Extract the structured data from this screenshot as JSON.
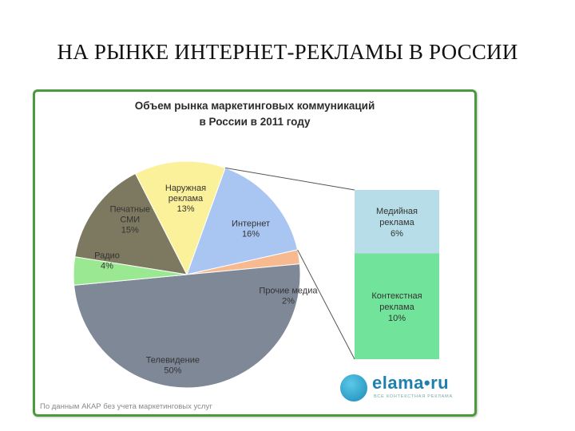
{
  "slide": {
    "title": "НА РЫНКЕ ИНТЕРНЕТ-РЕКЛАМЫ В РОССИИ"
  },
  "chart_data": {
    "type": "pie",
    "title": "Объем рынка маркетинговых коммуникаций в России в 2011 году",
    "title_lines": [
      "Объем рынка маркетинговых коммуникаций",
      "в России в 2011 году"
    ],
    "slices": [
      {
        "label": [
          "Печатные",
          "СМИ"
        ],
        "value": 15,
        "value_label": "15%",
        "color": "#7c7960"
      },
      {
        "label": [
          "Наружная",
          "реклама"
        ],
        "value": 13,
        "value_label": "13%",
        "color": "#fbf19b"
      },
      {
        "label": [
          "Интернет"
        ],
        "value": 16,
        "value_label": "16%",
        "color": "#a9c6f2"
      },
      {
        "label": [
          "Прочие медиа"
        ],
        "value": 2,
        "value_label": "2%",
        "color": "#f7b98f"
      },
      {
        "label": [
          "Телевидение"
        ],
        "value": 50,
        "value_label": "50%",
        "color": "#7f8897"
      },
      {
        "label": [
          "Радио"
        ],
        "value": 4,
        "value_label": "4%",
        "color": "#9be892"
      }
    ],
    "breakdown": {
      "of": "Интернет",
      "segments": [
        {
          "label": [
            "Медийная",
            "реклама"
          ],
          "value": 6,
          "value_label": "6%",
          "color": "#b6dde8"
        },
        {
          "label": [
            "Контекстная",
            "реклама"
          ],
          "value": 10,
          "value_label": "10%",
          "color": "#72e39a"
        }
      ]
    },
    "note": "По данным АКАР без учета маркетинговых услуг"
  },
  "logo": {
    "text": "elama•ru",
    "subtext": "ВСЕ КОНТЕКСТНАЯ РЕКЛАМА"
  },
  "colors": {
    "panel_border": "#4b9a3c",
    "connector": "#555555"
  }
}
